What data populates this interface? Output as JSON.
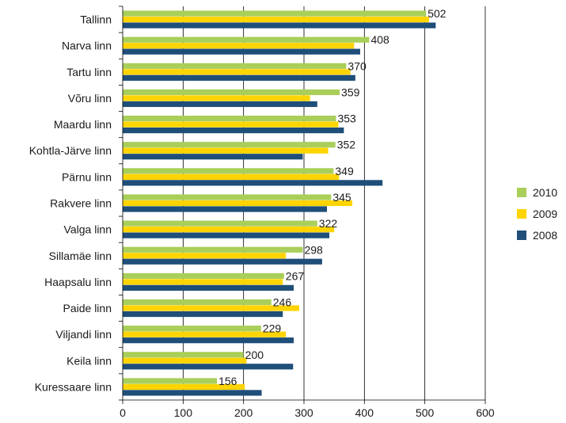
{
  "chart_data": {
    "type": "bar",
    "orientation": "horizontal",
    "categories": [
      "Tallinn",
      "Narva linn",
      "Tartu linn",
      "Võru linn",
      "Maardu linn",
      "Kohtla-Järve linn",
      "Pärnu linn",
      "Rakvere linn",
      "Valga linn",
      "Sillamäe linn",
      "Haapsalu linn",
      "Paide linn",
      "Viljandi linn",
      "Keila linn",
      "Kuressaare linn"
    ],
    "series": [
      {
        "name": "2010",
        "color": "#a9cf5a",
        "values": [
          502,
          408,
          370,
          359,
          353,
          352,
          349,
          345,
          322,
          298,
          267,
          246,
          229,
          200,
          156
        ]
      },
      {
        "name": "2009",
        "color": "#ffd400",
        "values": [
          507,
          383,
          377,
          310,
          357,
          340,
          358,
          380,
          350,
          270,
          265,
          292,
          270,
          205,
          202
        ]
      },
      {
        "name": "2008",
        "color": "#1f4e79",
        "values": [
          518,
          393,
          385,
          322,
          366,
          298,
          430,
          338,
          342,
          330,
          283,
          265,
          283,
          282,
          230
        ]
      }
    ],
    "data_labels_series": "2010",
    "xlim": [
      0,
      600
    ],
    "xticks": [
      0,
      100,
      200,
      300,
      400,
      500,
      600
    ],
    "grid": "vertical",
    "legend_position": "right",
    "title": "",
    "xlabel": "",
    "ylabel": ""
  }
}
